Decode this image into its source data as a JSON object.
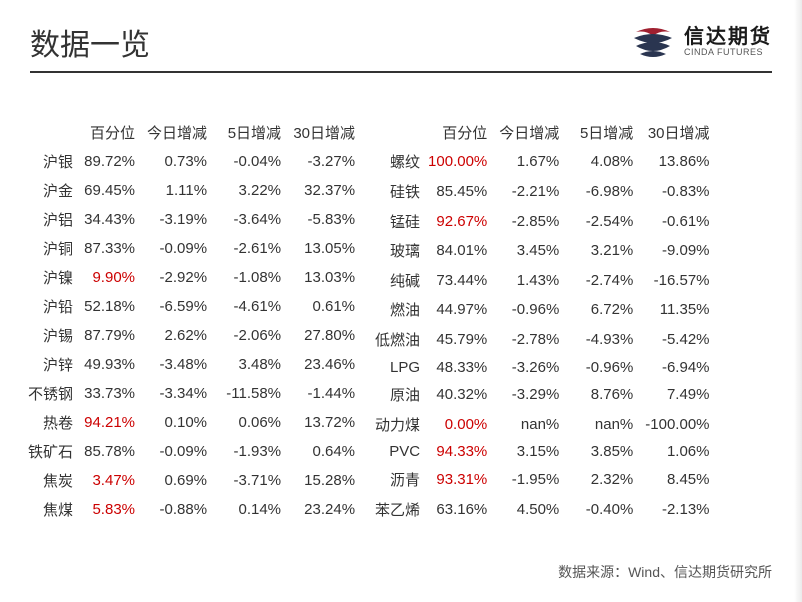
{
  "header": {
    "title": "数据一览",
    "logo_cn": "信达期货",
    "logo_en": "CINDA FUTURES"
  },
  "colors": {
    "text_normal": "#333333",
    "text_highlight": "#cc0000",
    "divider": "#333333",
    "background": "#ffffff",
    "logo_red": "#a02030",
    "logo_navy": "#2a3550"
  },
  "columns": [
    "百分位",
    "今日增减",
    "5日增减",
    "30日增减"
  ],
  "left_table": {
    "rows": [
      {
        "name": "沪银",
        "pct": "89.72%",
        "pct_hl": false,
        "today": "0.73%",
        "d5": "-0.04%",
        "d30": "-3.27%"
      },
      {
        "name": "沪金",
        "pct": "69.45%",
        "pct_hl": false,
        "today": "1.11%",
        "d5": "3.22%",
        "d30": "32.37%"
      },
      {
        "name": "沪铝",
        "pct": "34.43%",
        "pct_hl": false,
        "today": "-3.19%",
        "d5": "-3.64%",
        "d30": "-5.83%"
      },
      {
        "name": "沪铜",
        "pct": "87.33%",
        "pct_hl": false,
        "today": "-0.09%",
        "d5": "-2.61%",
        "d30": "13.05%"
      },
      {
        "name": "沪镍",
        "pct": "9.90%",
        "pct_hl": true,
        "today": "-2.92%",
        "d5": "-1.08%",
        "d30": "13.03%"
      },
      {
        "name": "沪铅",
        "pct": "52.18%",
        "pct_hl": false,
        "today": "-6.59%",
        "d5": "-4.61%",
        "d30": "0.61%"
      },
      {
        "name": "沪锡",
        "pct": "87.79%",
        "pct_hl": false,
        "today": "2.62%",
        "d5": "-2.06%",
        "d30": "27.80%"
      },
      {
        "name": "沪锌",
        "pct": "49.93%",
        "pct_hl": false,
        "today": "-3.48%",
        "d5": "3.48%",
        "d30": "23.46%"
      },
      {
        "name": "不锈钢",
        "pct": "33.73%",
        "pct_hl": false,
        "today": "-3.34%",
        "d5": "-11.58%",
        "d30": "-1.44%"
      },
      {
        "name": "热卷",
        "pct": "94.21%",
        "pct_hl": true,
        "today": "0.10%",
        "d5": "0.06%",
        "d30": "13.72%"
      },
      {
        "name": "铁矿石",
        "pct": "85.78%",
        "pct_hl": false,
        "today": "-0.09%",
        "d5": "-1.93%",
        "d30": "0.64%"
      },
      {
        "name": "焦炭",
        "pct": "3.47%",
        "pct_hl": true,
        "today": "0.69%",
        "d5": "-3.71%",
        "d30": "15.28%"
      },
      {
        "name": "焦煤",
        "pct": "5.83%",
        "pct_hl": true,
        "today": "-0.88%",
        "d5": "0.14%",
        "d30": "23.24%"
      }
    ]
  },
  "right_table": {
    "rows": [
      {
        "name": "螺纹",
        "pct": "100.00%",
        "pct_hl": true,
        "today": "1.67%",
        "d5": "4.08%",
        "d30": "13.86%"
      },
      {
        "name": "硅铁",
        "pct": "85.45%",
        "pct_hl": false,
        "today": "-2.21%",
        "d5": "-6.98%",
        "d30": "-0.83%"
      },
      {
        "name": "锰硅",
        "pct": "92.67%",
        "pct_hl": true,
        "today": "-2.85%",
        "d5": "-2.54%",
        "d30": "-0.61%"
      },
      {
        "name": "玻璃",
        "pct": "84.01%",
        "pct_hl": false,
        "today": "3.45%",
        "d5": "3.21%",
        "d30": "-9.09%"
      },
      {
        "name": "纯碱",
        "pct": "73.44%",
        "pct_hl": false,
        "today": "1.43%",
        "d5": "-2.74%",
        "d30": "-16.57%"
      },
      {
        "name": "燃油",
        "pct": "44.97%",
        "pct_hl": false,
        "today": "-0.96%",
        "d5": "6.72%",
        "d30": "11.35%"
      },
      {
        "name": "低燃油",
        "pct": "45.79%",
        "pct_hl": false,
        "today": "-2.78%",
        "d5": "-4.93%",
        "d30": "-5.42%"
      },
      {
        "name": "LPG",
        "pct": "48.33%",
        "pct_hl": false,
        "today": "-3.26%",
        "d5": "-0.96%",
        "d30": "-6.94%"
      },
      {
        "name": "原油",
        "pct": "40.32%",
        "pct_hl": false,
        "today": "-3.29%",
        "d5": "8.76%",
        "d30": "7.49%"
      },
      {
        "name": "动力煤",
        "pct": "0.00%",
        "pct_hl": true,
        "today": "nan%",
        "d5": "nan%",
        "d30": "-100.00%"
      },
      {
        "name": "PVC",
        "pct": "94.33%",
        "pct_hl": true,
        "today": "3.15%",
        "d5": "3.85%",
        "d30": "1.06%"
      },
      {
        "name": "沥青",
        "pct": "93.31%",
        "pct_hl": true,
        "today": "-1.95%",
        "d5": "2.32%",
        "d30": "8.45%"
      },
      {
        "name": "苯乙烯",
        "pct": "63.16%",
        "pct_hl": false,
        "today": "4.50%",
        "d5": "-0.40%",
        "d30": "-2.13%"
      }
    ]
  },
  "footer": {
    "source": "数据来源：Wind、信达期货研究所"
  }
}
